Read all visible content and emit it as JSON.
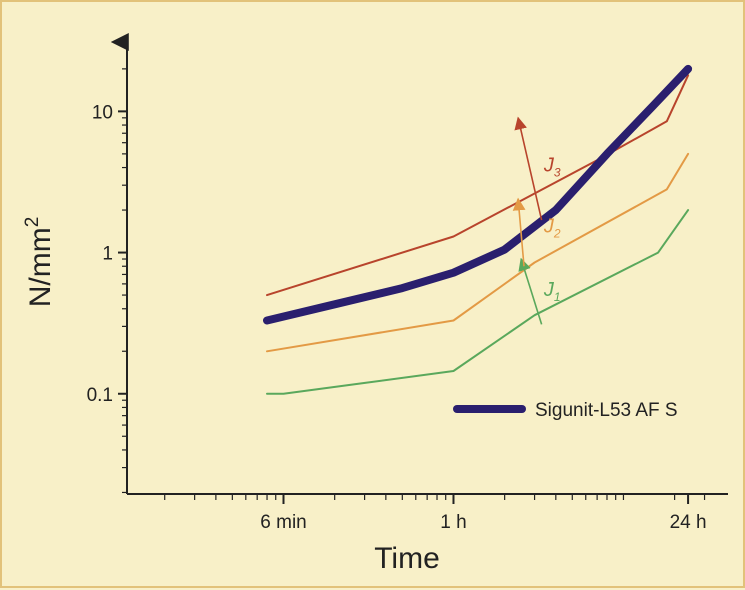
{
  "chart_data": {
    "type": "line",
    "x_scale": "log",
    "y_scale": "log",
    "xlabel": "Time",
    "ylabel": "N/mm",
    "ylabel_superscript": "2",
    "x_ticks": [
      {
        "value": 0.1,
        "label": "6 min"
      },
      {
        "value": 1,
        "label": "1 h"
      },
      {
        "value": 24,
        "label": "24 h"
      }
    ],
    "y_ticks": [
      {
        "value": 0.1,
        "label": "0.1"
      },
      {
        "value": 1,
        "label": "1"
      },
      {
        "value": 10,
        "label": "10"
      }
    ],
    "xlim": [
      0.012,
      38
    ],
    "ylim": [
      0.0195,
      30
    ],
    "series": [
      {
        "id": "sigunit",
        "name": "Sigunit-L53 AF S",
        "color": "#2a1f6e",
        "width": 8,
        "points": [
          [
            0.08,
            0.33
          ],
          [
            0.2,
            0.43
          ],
          [
            0.5,
            0.56
          ],
          [
            1,
            0.72
          ],
          [
            2,
            1.05
          ],
          [
            4,
            2.0
          ],
          [
            8,
            5.0
          ],
          [
            15,
            11
          ],
          [
            24,
            20
          ]
        ]
      },
      {
        "id": "j3",
        "color": "#b8442c",
        "width": 2,
        "points": [
          [
            0.08,
            0.5
          ],
          [
            1,
            1.3
          ],
          [
            7,
            4.5
          ],
          [
            18,
            8.5
          ],
          [
            24,
            18
          ]
        ]
      },
      {
        "id": "j2",
        "color": "#e39a45",
        "width": 2,
        "points": [
          [
            0.08,
            0.2
          ],
          [
            1,
            0.33
          ],
          [
            3,
            0.85
          ],
          [
            18,
            2.8
          ],
          [
            24,
            5.0
          ]
        ]
      },
      {
        "id": "j1",
        "color": "#5aa85c",
        "width": 2,
        "points": [
          [
            0.08,
            0.1
          ],
          [
            0.1,
            0.1
          ],
          [
            1,
            0.145
          ],
          [
            3,
            0.36
          ],
          [
            16,
            1.0
          ],
          [
            24,
            2.0
          ]
        ]
      }
    ],
    "annotations": [
      {
        "text": "J",
        "sub": "1",
        "color": "#5aa85c",
        "arrow_from": [
          3.3,
          0.31
        ],
        "arrow_to": [
          2.5,
          0.9
        ],
        "label_at": [
          3.4,
          0.55
        ]
      },
      {
        "text": "J",
        "sub": "2",
        "color": "#e39a45",
        "arrow_from": [
          2.6,
          0.8
        ],
        "arrow_to": [
          2.4,
          2.4
        ],
        "label_at": [
          3.4,
          1.55
        ]
      },
      {
        "text": "J",
        "sub": "3",
        "color": "#b8442c",
        "arrow_from": [
          3.3,
          1.7
        ],
        "arrow_to": [
          2.4,
          9.0
        ],
        "label_at": [
          3.4,
          4.2
        ]
      }
    ],
    "legend": {
      "label": "Sigunit-L53 AF S",
      "position": "bottom-right"
    },
    "grid": false
  }
}
